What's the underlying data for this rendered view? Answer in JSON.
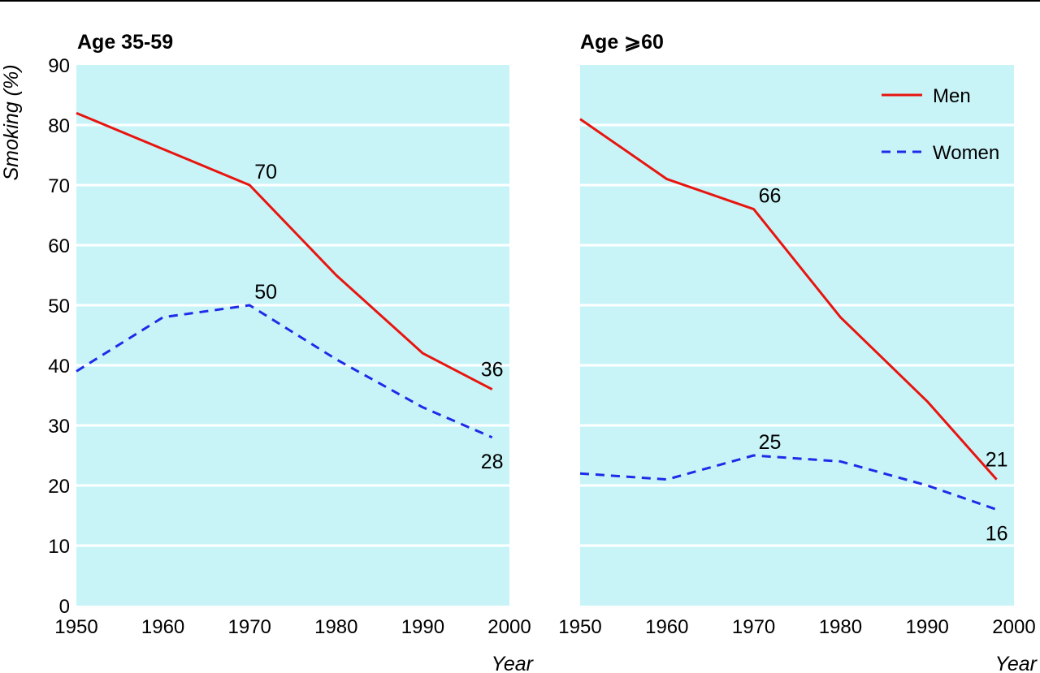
{
  "chart_data": [
    {
      "type": "line",
      "title": "Age 35-59",
      "xlabel": "Year",
      "ylabel": "Smoking (%)",
      "xlim": [
        1950,
        2000
      ],
      "ylim": [
        0,
        90
      ],
      "x_ticks": [
        "1950",
        "1960",
        "1970",
        "1980",
        "1990",
        "2000"
      ],
      "y_ticks": [
        "0",
        "10",
        "20",
        "30",
        "40",
        "50",
        "60",
        "70",
        "80",
        "90"
      ],
      "grid": true,
      "background_color": "#c8f4f8",
      "series": [
        {
          "name": "Men",
          "color": "#e8150f",
          "style": "solid",
          "x": [
            1950,
            1960,
            1970,
            1980,
            1990,
            1998
          ],
          "y": [
            82,
            76,
            70,
            55,
            42,
            36
          ]
        },
        {
          "name": "Women",
          "color": "#1f2be8",
          "style": "dashed",
          "x": [
            1950,
            1960,
            1970,
            1980,
            1990,
            1998
          ],
          "y": [
            39,
            48,
            50,
            41,
            33,
            28
          ]
        }
      ],
      "annotations": [
        {
          "text": "70",
          "x": 1970,
          "y": 70,
          "anchor": "above-right"
        },
        {
          "text": "50",
          "x": 1970,
          "y": 50,
          "anchor": "above-right"
        },
        {
          "text": "36",
          "x": 1998,
          "y": 36,
          "anchor": "above"
        },
        {
          "text": "28",
          "x": 1998,
          "y": 28,
          "anchor": "below"
        }
      ]
    },
    {
      "type": "line",
      "title": "Age ⩾60",
      "xlabel": "Year",
      "ylabel": "",
      "xlim": [
        1950,
        2000
      ],
      "ylim": [
        0,
        90
      ],
      "x_ticks": [
        "1950",
        "1960",
        "1970",
        "1980",
        "1990",
        "2000"
      ],
      "y_ticks": [],
      "grid": true,
      "background_color": "#c8f4f8",
      "legend": {
        "position": "top-right",
        "entries": [
          {
            "label": "Men",
            "color": "#e8150f",
            "style": "solid"
          },
          {
            "label": "Women",
            "color": "#1f2be8",
            "style": "dashed"
          }
        ]
      },
      "series": [
        {
          "name": "Men",
          "color": "#e8150f",
          "style": "solid",
          "x": [
            1950,
            1960,
            1970,
            1980,
            1990,
            1998
          ],
          "y": [
            81,
            71,
            66,
            48,
            34,
            21
          ]
        },
        {
          "name": "Women",
          "color": "#1f2be8",
          "style": "dashed",
          "x": [
            1950,
            1960,
            1970,
            1980,
            1990,
            1998
          ],
          "y": [
            22,
            21,
            25,
            24,
            20,
            16
          ]
        }
      ],
      "annotations": [
        {
          "text": "66",
          "x": 1970,
          "y": 66,
          "anchor": "above-right"
        },
        {
          "text": "25",
          "x": 1970,
          "y": 25,
          "anchor": "above-right"
        },
        {
          "text": "21",
          "x": 1998,
          "y": 21,
          "anchor": "above"
        },
        {
          "text": "16",
          "x": 1998,
          "y": 16,
          "anchor": "below"
        }
      ]
    }
  ]
}
